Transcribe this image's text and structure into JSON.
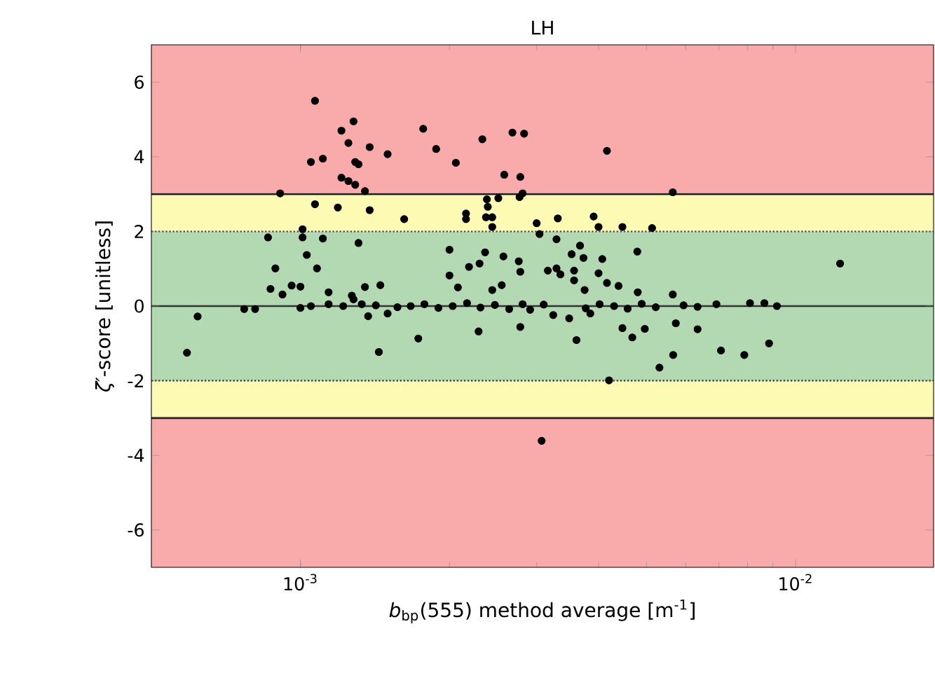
{
  "chart_data": {
    "type": "scatter",
    "title": "LH",
    "xlabel": "*b*$_{bp}$(555) method average  [m$^{-1}$]",
    "ylabel": "*ζ′*-score  [unitless]",
    "log": "x",
    "xlim": [
      0.0005,
      0.019
    ],
    "ylim": [
      -7,
      7
    ],
    "xticks": [
      {
        "value": 0.001,
        "label": "10$^{-3}$"
      },
      {
        "value": 0.01,
        "label": "10$^{-2}$"
      }
    ],
    "yticks": [
      -6,
      -4,
      -2,
      0,
      2,
      4,
      6
    ],
    "marker": "circle",
    "bands": [
      {
        "axis": "y",
        "from": -7,
        "to": -3,
        "color": "#f9aaaa"
      },
      {
        "axis": "y",
        "from": -3,
        "to": -2,
        "color": "#fdfab3"
      },
      {
        "axis": "y",
        "from": -2,
        "to": 2,
        "color": "#b2d9b2"
      },
      {
        "axis": "y",
        "from": 2,
        "to": 3,
        "color": "#fdfab3"
      },
      {
        "axis": "y",
        "from": 3,
        "to": 7,
        "color": "#f9aaaa"
      }
    ],
    "ref_lines": [
      {
        "axis": "y",
        "value": 3,
        "color": "#222222",
        "line_style": "solid"
      },
      {
        "axis": "y",
        "value": 2,
        "color": "#444444",
        "line_style": "dotted"
      },
      {
        "axis": "y",
        "value": 0,
        "color": "#333333",
        "line_style": "solid"
      },
      {
        "axis": "y",
        "value": -2,
        "color": "#444444",
        "line_style": "dotted"
      },
      {
        "axis": "y",
        "value": -3,
        "color": "#222222",
        "line_style": "solid"
      }
    ],
    "series": [
      {
        "color": "#000000",
        "x": [
          0.00107,
          0.00128,
          0.00121,
          0.00125,
          0.00138,
          0.0015,
          0.00105,
          0.00111,
          0.00129,
          0.00131,
          0.00121,
          0.00125,
          0.00129,
          0.00135,
          0.00091,
          0.00107,
          0.00119,
          0.00138,
          0.00162,
          0.00177,
          0.00188,
          0.00206,
          0.00233,
          0.00268,
          0.00283,
          0.00258,
          0.00278,
          0.00277,
          0.00281,
          0.00238,
          0.00251,
          0.00239,
          0.00216,
          0.00216,
          0.00237,
          0.00244,
          0.00244,
          0.003,
          0.00304,
          0.00086,
          0.00101,
          0.00101,
          0.00111,
          0.00131,
          0.00103,
          0.00089,
          0.00108,
          0.002,
          0.00236,
          0.00257,
          0.00219,
          0.0023,
          0.00276,
          0.00278,
          0.002,
          0.00087,
          0.00092,
          0.00096,
          0.001,
          0.00114,
          0.00135,
          0.00145,
          0.00127,
          0.00208,
          0.00244,
          0.00255,
          0.00062,
          0.00059,
          0.00077,
          0.00081,
          0.001,
          0.00105,
          0.00114,
          0.00122,
          0.00128,
          0.00133,
          0.00137,
          0.00144,
          0.0015,
          0.00173,
          0.00229,
          0.00278,
          0.00307,
          0.00416,
          0.00565,
          0.00331,
          0.00391,
          0.004,
          0.00447,
          0.00513,
          0.00329,
          0.00367,
          0.00353,
          0.00373,
          0.00407,
          0.00479,
          0.0123,
          0.00316,
          0.00329,
          0.00335,
          0.00357,
          0.00357,
          0.004,
          0.00416,
          0.00439,
          0.0048,
          0.00565,
          0.00375,
          0.00809,
          0.00865,
          0.00917,
          0.00692,
          0.00324,
          0.00349,
          0.00385,
          0.00447,
          0.00496,
          0.00468,
          0.00361,
          0.00573,
          0.00634,
          0.00566,
          0.00531,
          0.00707,
          0.00788,
          0.00884,
          0.0042,
          0.00142,
          0.00157,
          0.00167,
          0.00178,
          0.0019,
          0.00203,
          0.00217,
          0.00231,
          0.00247,
          0.00264,
          0.00281,
          0.00291,
          0.0031,
          0.00377,
          0.00402,
          0.0043,
          0.00458,
          0.00489,
          0.00522,
          0.00594,
          0.00634
        ],
        "values": [
          5.5,
          4.95,
          4.7,
          4.37,
          4.26,
          4.07,
          3.86,
          3.95,
          3.86,
          3.8,
          3.44,
          3.35,
          3.25,
          3.08,
          3.02,
          2.73,
          2.64,
          2.57,
          2.33,
          4.75,
          4.21,
          3.84,
          4.47,
          4.65,
          4.62,
          3.52,
          3.46,
          2.92,
          3.02,
          2.86,
          2.89,
          2.66,
          2.48,
          2.33,
          2.38,
          2.38,
          2.12,
          2.22,
          1.93,
          1.84,
          2.06,
          1.84,
          1.81,
          1.69,
          1.37,
          1.01,
          1.01,
          1.51,
          1.44,
          1.33,
          1.05,
          1.14,
          1.2,
          0.92,
          0.82,
          0.46,
          0.31,
          0.55,
          0.52,
          0.37,
          0.51,
          0.56,
          0.28,
          0.5,
          0.43,
          0.56,
          -0.28,
          -1.25,
          -0.08,
          -0.08,
          -0.05,
          0,
          0.05,
          0,
          0.18,
          0.05,
          -0.27,
          -1.23,
          -0.2,
          -0.87,
          -0.68,
          -0.56,
          -3.61,
          4.16,
          3.05,
          2.35,
          2.4,
          2.12,
          2.12,
          2.09,
          1.79,
          1.62,
          1.39,
          1.29,
          1.26,
          1.46,
          1.14,
          0.95,
          1.01,
          0.85,
          0.95,
          0.69,
          0.88,
          0.62,
          0.54,
          0.37,
          0.31,
          0.43,
          0.08,
          0.08,
          0,
          0.05,
          -0.24,
          -0.33,
          -0.2,
          -0.59,
          -0.61,
          -0.84,
          -0.91,
          -0.46,
          -0.62,
          -1.31,
          -1.65,
          -1.19,
          -1.31,
          -1,
          -1.99,
          0.02,
          -0.03,
          0,
          0.05,
          -0.05,
          0,
          0.08,
          -0.04,
          0.03,
          -0.08,
          0.05,
          -0.1,
          0.04,
          -0.06,
          0.05,
          0,
          -0.07,
          0.06,
          -0.03,
          0.02,
          -0.02
        ]
      }
    ]
  }
}
